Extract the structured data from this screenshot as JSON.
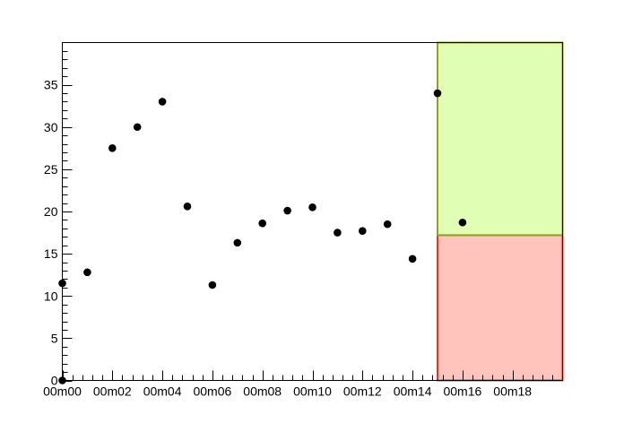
{
  "chart_data": {
    "type": "scatter",
    "title": "",
    "xlabel": "",
    "ylabel": "",
    "x_unit_label_format": "MMmSS",
    "xlim": [
      0,
      20
    ],
    "ylim": [
      0,
      40
    ],
    "x_tick_labels": [
      "00m00",
      "00m02",
      "00m04",
      "00m06",
      "00m08",
      "00m10",
      "00m12",
      "00m14",
      "00m16",
      "00m18"
    ],
    "x_tick_values": [
      0,
      2,
      4,
      6,
      8,
      10,
      12,
      14,
      16,
      18
    ],
    "y_tick_labels": [
      "0",
      "5",
      "10",
      "15",
      "20",
      "25",
      "30",
      "35"
    ],
    "y_tick_values": [
      0,
      5,
      10,
      15,
      20,
      25,
      30,
      35
    ],
    "grid": false,
    "legend": "none",
    "series": [
      {
        "points": [
          {
            "x": 0,
            "y": 0
          },
          {
            "x": 0,
            "y": 11.5
          },
          {
            "x": 1,
            "y": 12.8
          },
          {
            "x": 2,
            "y": 27.5
          },
          {
            "x": 3,
            "y": 30.0
          },
          {
            "x": 4,
            "y": 33.0
          },
          {
            "x": 5,
            "y": 20.6
          },
          {
            "x": 6,
            "y": 11.3
          },
          {
            "x": 7,
            "y": 16.3
          },
          {
            "x": 8,
            "y": 18.6
          },
          {
            "x": 9,
            "y": 20.1
          },
          {
            "x": 10,
            "y": 20.5
          },
          {
            "x": 11,
            "y": 17.5
          },
          {
            "x": 12,
            "y": 17.7
          },
          {
            "x": 13,
            "y": 18.5
          },
          {
            "x": 14,
            "y": 14.4
          },
          {
            "x": 15,
            "y": 34.0
          },
          {
            "x": 16,
            "y": 18.7
          }
        ],
        "color": "#000000"
      }
    ],
    "bands": [
      {
        "x_from": 15,
        "x_to": 20,
        "y_from": 0,
        "y_to": 17.2,
        "fill": "#ffc4bc",
        "stroke": "#e8341c"
      },
      {
        "x_from": 15,
        "x_to": 20,
        "y_from": 17.2,
        "y_to": 40,
        "fill": "#e0ffb4",
        "stroke": "#8fa21a"
      }
    ]
  }
}
